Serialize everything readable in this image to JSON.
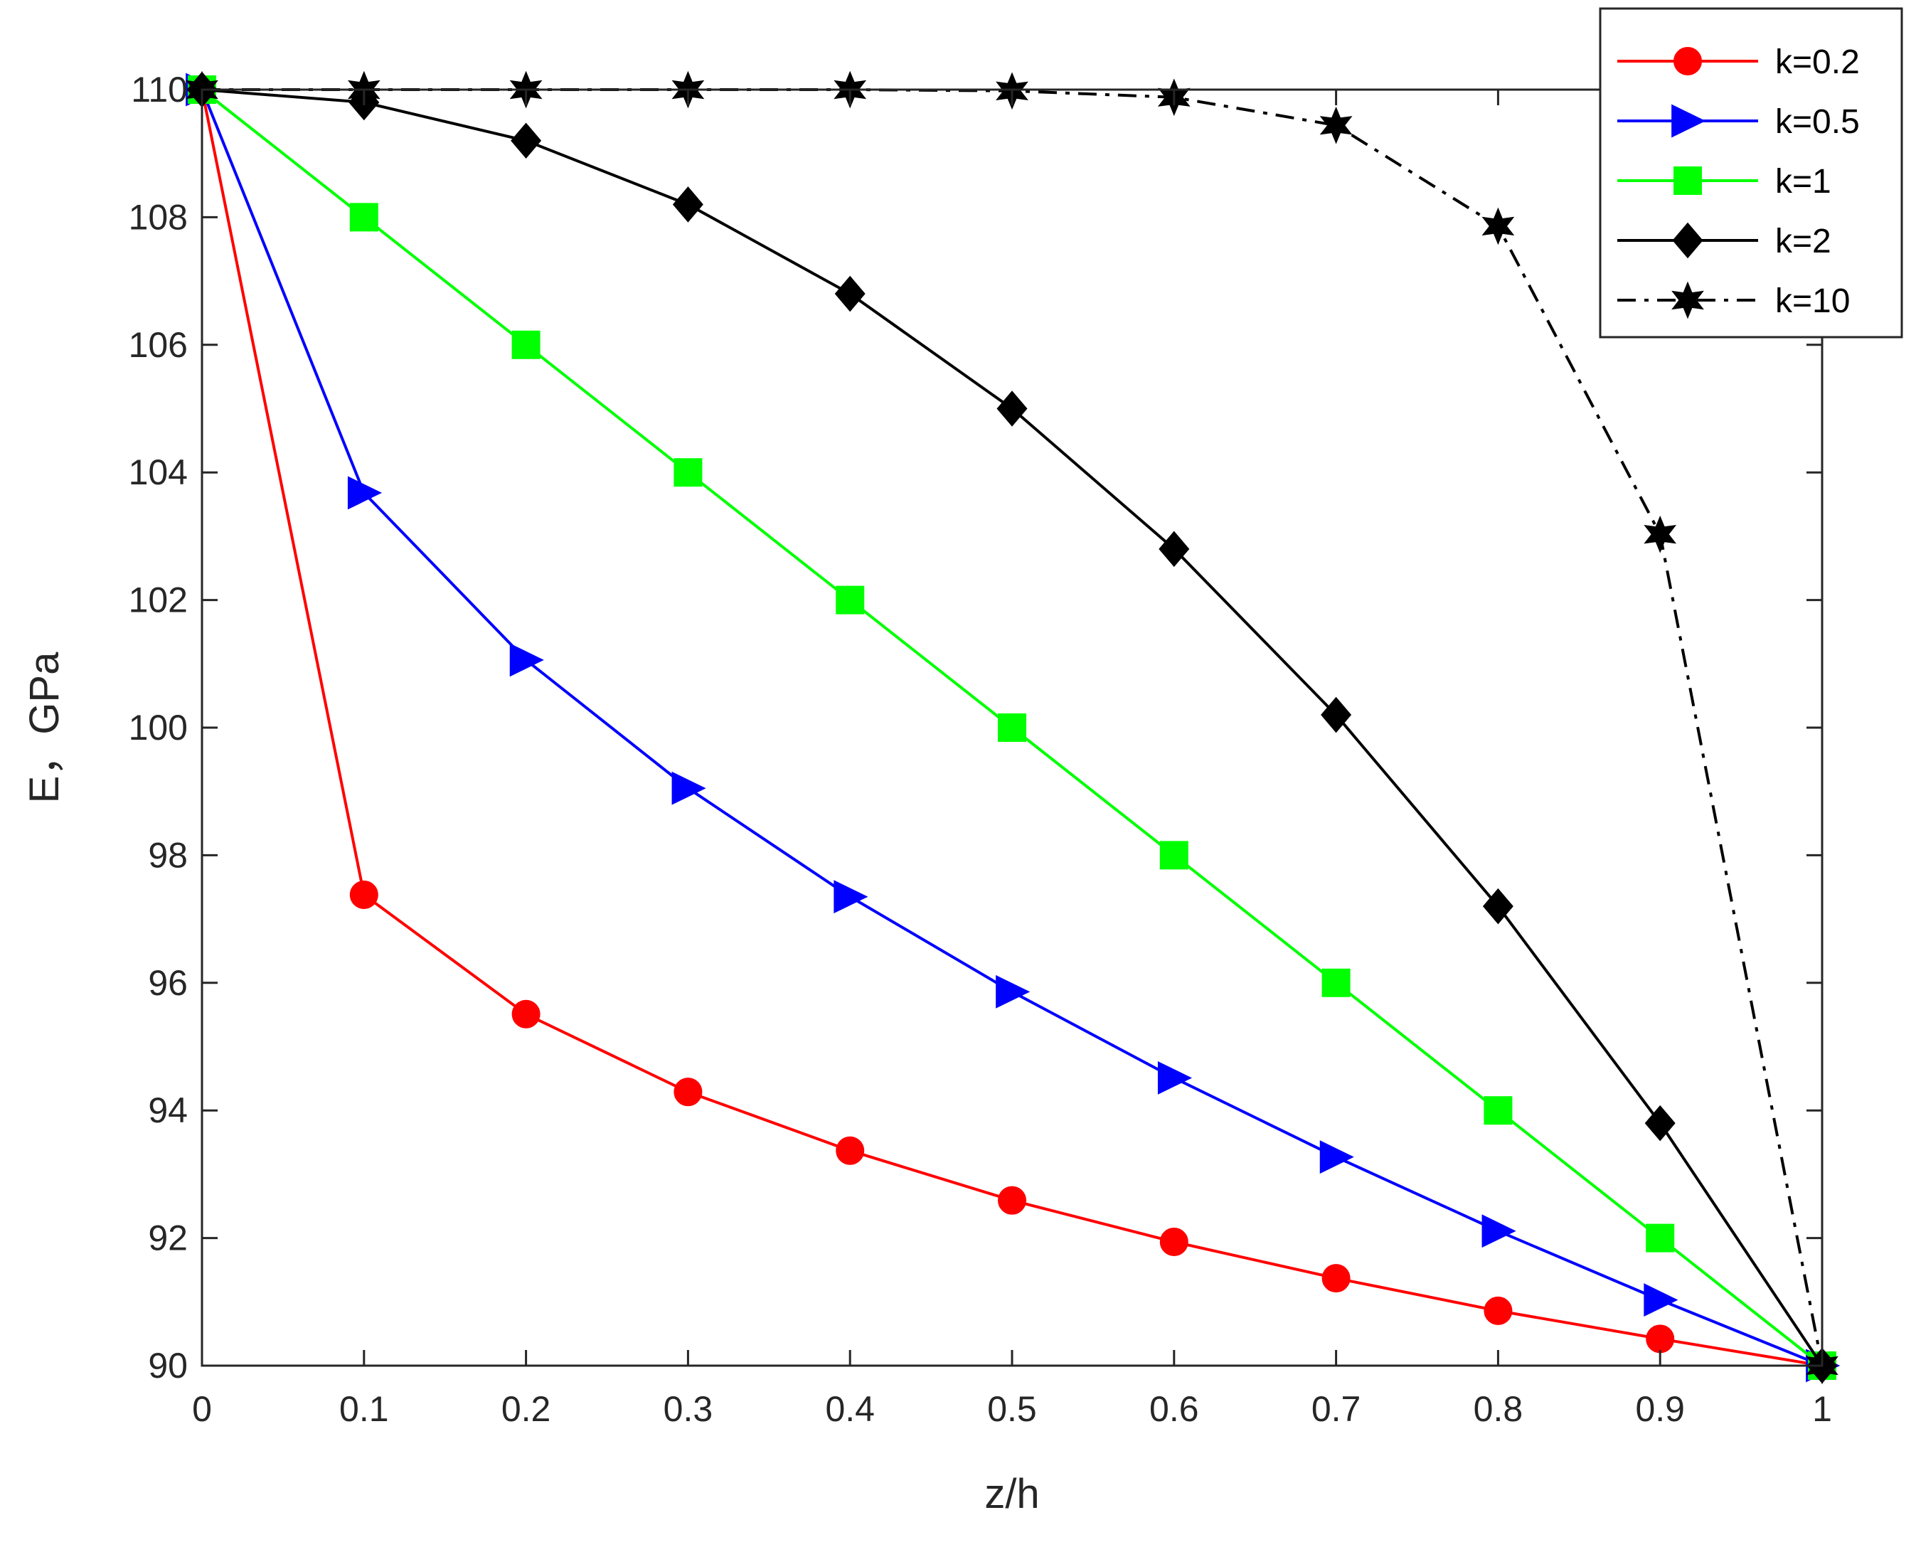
{
  "chart_data": {
    "type": "line",
    "xlabel": "z/h",
    "ylabel": "E，GPa",
    "xlim": [
      0,
      1
    ],
    "ylim": [
      90,
      110
    ],
    "xticks": [
      "0",
      "0.1",
      "0.2",
      "0.3",
      "0.4",
      "0.5",
      "0.6",
      "0.7",
      "0.8",
      "0.9",
      "1"
    ],
    "yticks": [
      "90",
      "92",
      "94",
      "96",
      "98",
      "100",
      "102",
      "104",
      "106",
      "108",
      "110"
    ],
    "grid": false,
    "legend_position": "top-right",
    "x": [
      0,
      0.1,
      0.2,
      0.3,
      0.4,
      0.5,
      0.6,
      0.7,
      0.8,
      0.9,
      1
    ],
    "series": [
      {
        "name": "k=0.2",
        "color": "#ff0000",
        "marker": "circle",
        "line": "solid",
        "values": [
          110,
          97.38,
          95.51,
          94.29,
          93.37,
          92.59,
          91.94,
          91.37,
          90.86,
          90.42,
          90
        ]
      },
      {
        "name": "k=0.5",
        "color": "#0000ff",
        "marker": "triangle-right",
        "line": "solid",
        "values": [
          110,
          103.68,
          101.06,
          99.05,
          97.35,
          95.86,
          94.51,
          93.27,
          92.11,
          91.03,
          90
        ]
      },
      {
        "name": "k=1",
        "color": "#00ff00",
        "marker": "square",
        "line": "solid",
        "values": [
          110,
          108,
          106,
          104,
          102,
          100,
          98,
          96,
          94,
          92,
          90
        ]
      },
      {
        "name": "k=2",
        "color": "#000000",
        "marker": "diamond",
        "line": "solid",
        "values": [
          110,
          109.8,
          109.2,
          108.2,
          106.8,
          105,
          102.8,
          100.2,
          97.2,
          93.8,
          90
        ]
      },
      {
        "name": "k=10",
        "color": "#000000",
        "marker": "hexagram",
        "line": "dash-dot",
        "values": [
          110,
          110,
          110,
          110,
          110,
          109.98,
          109.88,
          109.44,
          107.86,
          103.03,
          90
        ]
      }
    ]
  }
}
